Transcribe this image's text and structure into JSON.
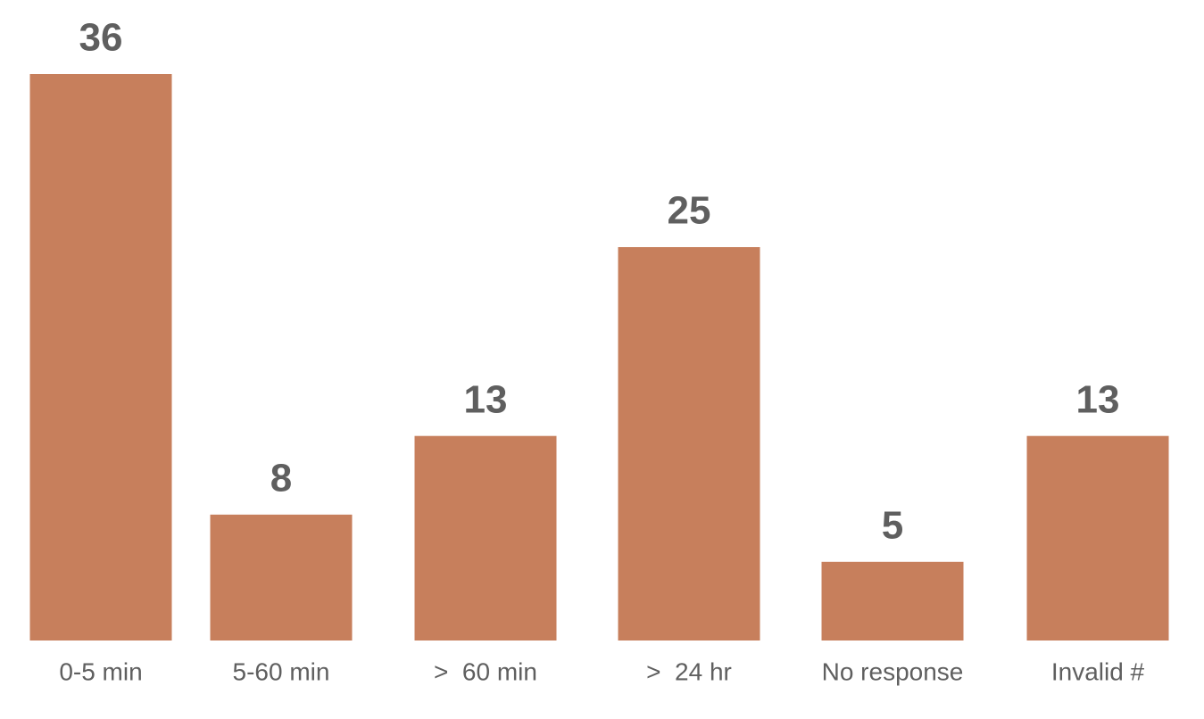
{
  "chart_data": {
    "type": "bar",
    "categories": [
      "0-5 min",
      "5-60 min",
      ">  60 min",
      ">  24 hr",
      "No response",
      "Invalid #"
    ],
    "values": [
      36,
      8,
      13,
      25,
      5,
      13
    ],
    "color": "#c77f5c"
  }
}
